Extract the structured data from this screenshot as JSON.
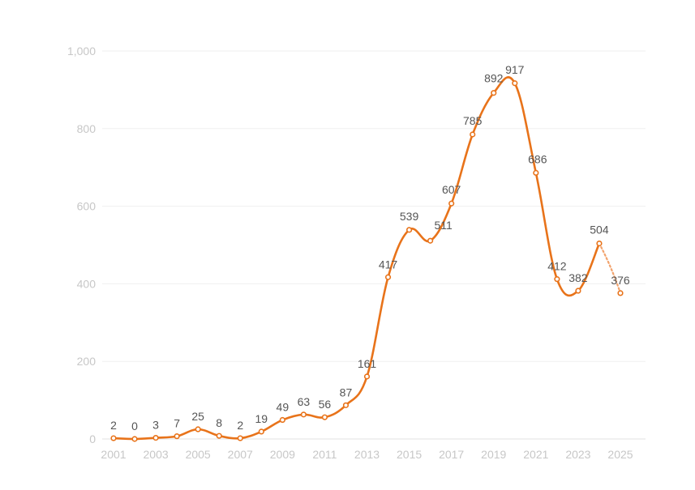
{
  "chart_data": {
    "type": "line",
    "title": "",
    "xlabel": "",
    "ylabel": "",
    "ylim": [
      0,
      1000
    ],
    "grid": true,
    "legend": "none",
    "x": [
      2001,
      2002,
      2003,
      2004,
      2005,
      2006,
      2007,
      2008,
      2009,
      2010,
      2011,
      2012,
      2013,
      2014,
      2015,
      2016,
      2017,
      2018,
      2019,
      2020,
      2021,
      2022,
      2023,
      2024,
      2025
    ],
    "x_tick_labels": [
      "2001",
      "2003",
      "2005",
      "2007",
      "2009",
      "2011",
      "2013",
      "2015",
      "2017",
      "2019",
      "2021",
      "2023",
      "2025"
    ],
    "y_tick_labels": [
      "0",
      "200",
      "400",
      "600",
      "800",
      "1,000"
    ],
    "y_ticks": [
      0,
      200,
      400,
      600,
      800,
      1000
    ],
    "series": [
      {
        "values": [
          2,
          0,
          3,
          7,
          25,
          8,
          2,
          19,
          49,
          63,
          56,
          87,
          161,
          417,
          539,
          511,
          607,
          785,
          892,
          917,
          686,
          412,
          382,
          504,
          376
        ],
        "labels": [
          "2",
          "0",
          "3",
          "7",
          "25",
          "8",
          "2",
          "19",
          "49",
          "63",
          "56",
          "87",
          "161",
          "417",
          "539",
          "511",
          "607",
          "785",
          "892",
          "917",
          "686",
          "412",
          "382",
          "504",
          "376"
        ],
        "color": "#e8731a",
        "dashed_last_segment": true
      }
    ]
  }
}
